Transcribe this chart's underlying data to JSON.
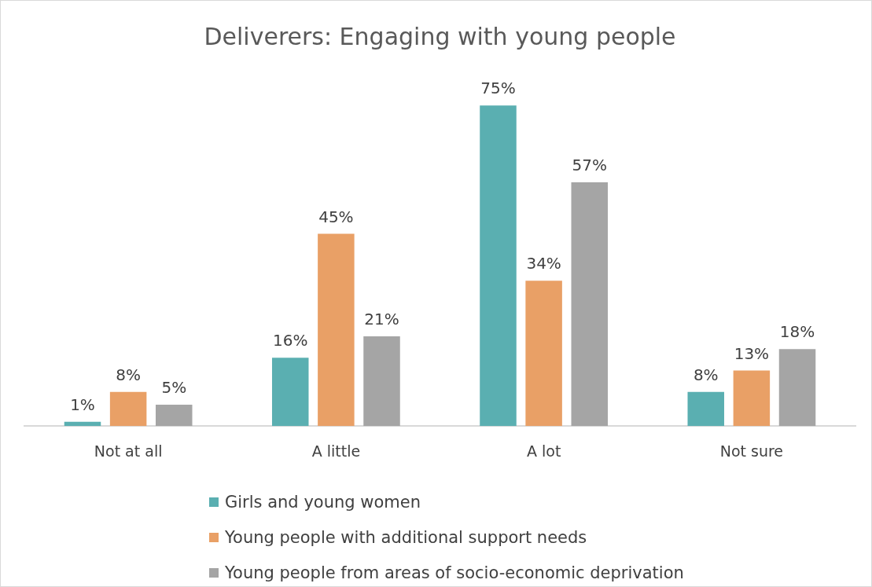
{
  "chart_data": {
    "type": "bar",
    "title": "Deliverers: Engaging with young people",
    "categories": [
      "Not at all",
      "A little",
      "A lot",
      "Not sure"
    ],
    "series": [
      {
        "name": "Girls and young women",
        "color": "#5aafb1",
        "values": [
          1,
          16,
          75,
          8
        ],
        "value_labels": [
          "1%",
          "16%",
          "75%",
          "8%"
        ]
      },
      {
        "name": "Young people with additional support needs",
        "color": "#e9a066",
        "values": [
          8,
          45,
          34,
          13
        ],
        "value_labels": [
          "8%",
          "45%",
          "34%",
          "13%"
        ]
      },
      {
        "name": "Young people from areas of socio-economic deprivation",
        "color": "#a5a5a5",
        "values": [
          5,
          21,
          57,
          18
        ],
        "value_labels": [
          "5%",
          "21%",
          "57%",
          "18%"
        ]
      }
    ],
    "legend": "bottom"
  }
}
